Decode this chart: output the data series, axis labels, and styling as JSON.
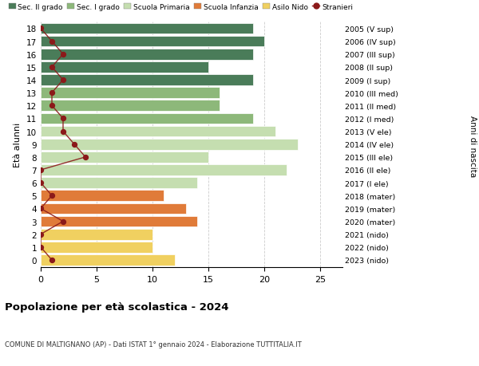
{
  "ages": [
    18,
    17,
    16,
    15,
    14,
    13,
    12,
    11,
    10,
    9,
    8,
    7,
    6,
    5,
    4,
    3,
    2,
    1,
    0
  ],
  "right_labels": [
    "2005 (V sup)",
    "2006 (IV sup)",
    "2007 (III sup)",
    "2008 (II sup)",
    "2009 (I sup)",
    "2010 (III med)",
    "2011 (II med)",
    "2012 (I med)",
    "2013 (V ele)",
    "2014 (IV ele)",
    "2015 (III ele)",
    "2016 (II ele)",
    "2017 (I ele)",
    "2018 (mater)",
    "2019 (mater)",
    "2020 (mater)",
    "2021 (nido)",
    "2022 (nido)",
    "2023 (nido)"
  ],
  "bar_values": [
    19,
    20,
    19,
    15,
    19,
    16,
    16,
    19,
    21,
    23,
    15,
    22,
    14,
    11,
    13,
    14,
    10,
    10,
    12
  ],
  "bar_colors": [
    "#4a7c59",
    "#4a7c59",
    "#4a7c59",
    "#4a7c59",
    "#4a7c59",
    "#8db87a",
    "#8db87a",
    "#8db87a",
    "#c5deb0",
    "#c5deb0",
    "#c5deb0",
    "#c5deb0",
    "#c5deb0",
    "#e07b39",
    "#e07b39",
    "#e07b39",
    "#f0d060",
    "#f0d060",
    "#f0d060"
  ],
  "stranieri_values": [
    0,
    1,
    2,
    1,
    2,
    1,
    1,
    2,
    2,
    3,
    4,
    0,
    0,
    1,
    0,
    2,
    0,
    0,
    1
  ],
  "title": "Popolazione per età scolastica - 2024",
  "subtitle": "COMUNE DI MALTIGNANO (AP) - Dati ISTAT 1° gennaio 2024 - Elaborazione TUTTITALIA.IT",
  "ylabel": "Età alunni",
  "right_ylabel": "Anni di nascita",
  "legend_labels": [
    "Sec. II grado",
    "Sec. I grado",
    "Scuola Primaria",
    "Scuola Infanzia",
    "Asilo Nido",
    "Stranieri"
  ],
  "legend_colors": [
    "#4a7c59",
    "#8db87a",
    "#c5deb0",
    "#e07b39",
    "#f0d060",
    "#8b1a1a"
  ],
  "xlim": [
    0,
    27
  ],
  "grid_color": "#cccccc",
  "bar_height": 0.85,
  "stranieri_color": "#8b1a1a"
}
